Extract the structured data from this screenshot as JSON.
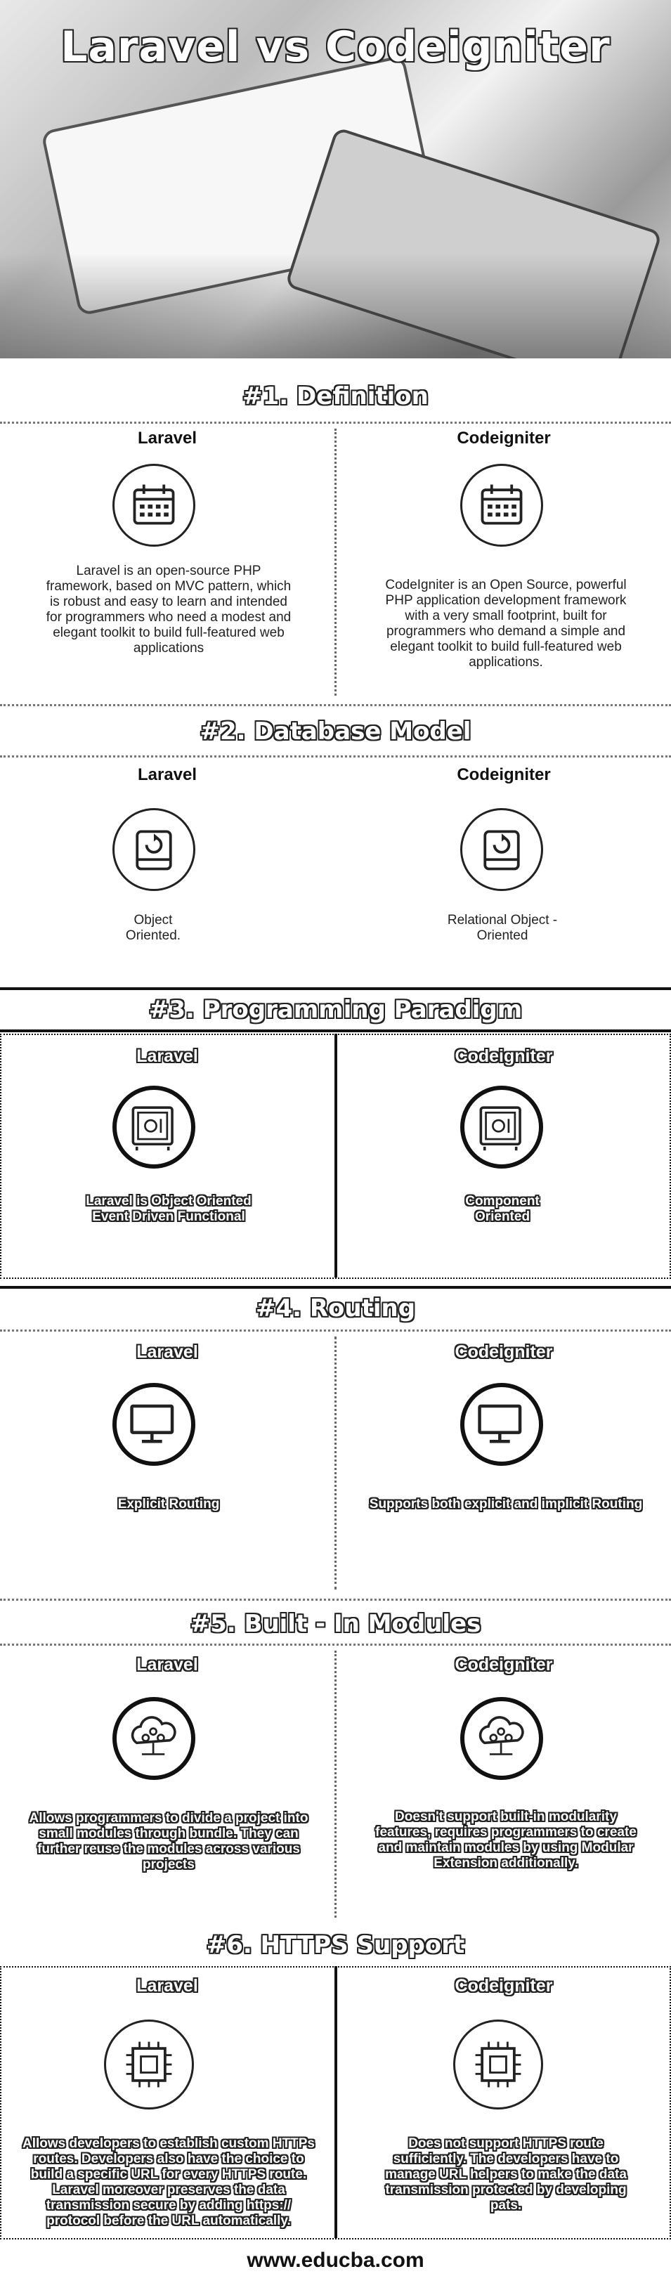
{
  "title": "Laravel vs Codeigniter",
  "sections": [
    {
      "heading": "#1. Definition",
      "left": {
        "name": "Laravel",
        "text": "Laravel is an open-source PHP framework, based on MVC pattern, which is robust and easy to learn and intended for programmers who need a modest and elegant toolkit to build full-featured web applications"
      },
      "right": {
        "name": "Codeigniter",
        "text": "CodeIgniter is an Open Source, powerful PHP application development framework with a very small footprint, built for programmers who demand a simple and elegant toolkit to build full-featured web applications."
      }
    },
    {
      "heading": "#2. Database Model",
      "left": {
        "name": "Laravel",
        "text": "Object Oriented."
      },
      "right": {
        "name": "Codeigniter",
        "text": "Relational Object - Oriented"
      }
    },
    {
      "heading": "#3. Programming Paradigm",
      "left": {
        "name": "Laravel",
        "text": "Laravel is Object Oriented Event Driven Functional"
      },
      "right": {
        "name": "Codeigniter",
        "text": "Component Oriented"
      }
    },
    {
      "heading": "#4. Routing",
      "left": {
        "name": "Laravel",
        "text": "Explicit Routing"
      },
      "right": {
        "name": "Codeigniter",
        "text": "Supports both explicit and implicit Routing"
      }
    },
    {
      "heading": "#5. Built - In Modules",
      "left": {
        "name": "Laravel",
        "text": "Allows programmers to divide a project into small modules through bundle. They can further reuse the modules across various projects"
      },
      "right": {
        "name": "Codeigniter",
        "text": "Doesn't support built-in modularity features, requires programmers to create and maintain modules by using Modular Extension additionally."
      }
    },
    {
      "heading": "#6. HTTPS Support",
      "left": {
        "name": "Laravel",
        "text": "Allows developers to establish custom HTTPs routes. Developers also have the choice to build a specific URL for every HTTPS route. Laravel moreover preserves the data transmission secure by adding https:// protocol before the URL automatically."
      },
      "right": {
        "name": "Codeigniter",
        "text": "Does not support HTTPS route sufficiently. The developers have to manage URL helpers to make the data transmission protected by developing pats."
      }
    }
  ],
  "footer": "www.educba.com",
  "icons": [
    "calendar-icon",
    "hard-drive-icon",
    "safe-icon",
    "monitor-icon",
    "cloud-network-icon",
    "chip-icon"
  ]
}
